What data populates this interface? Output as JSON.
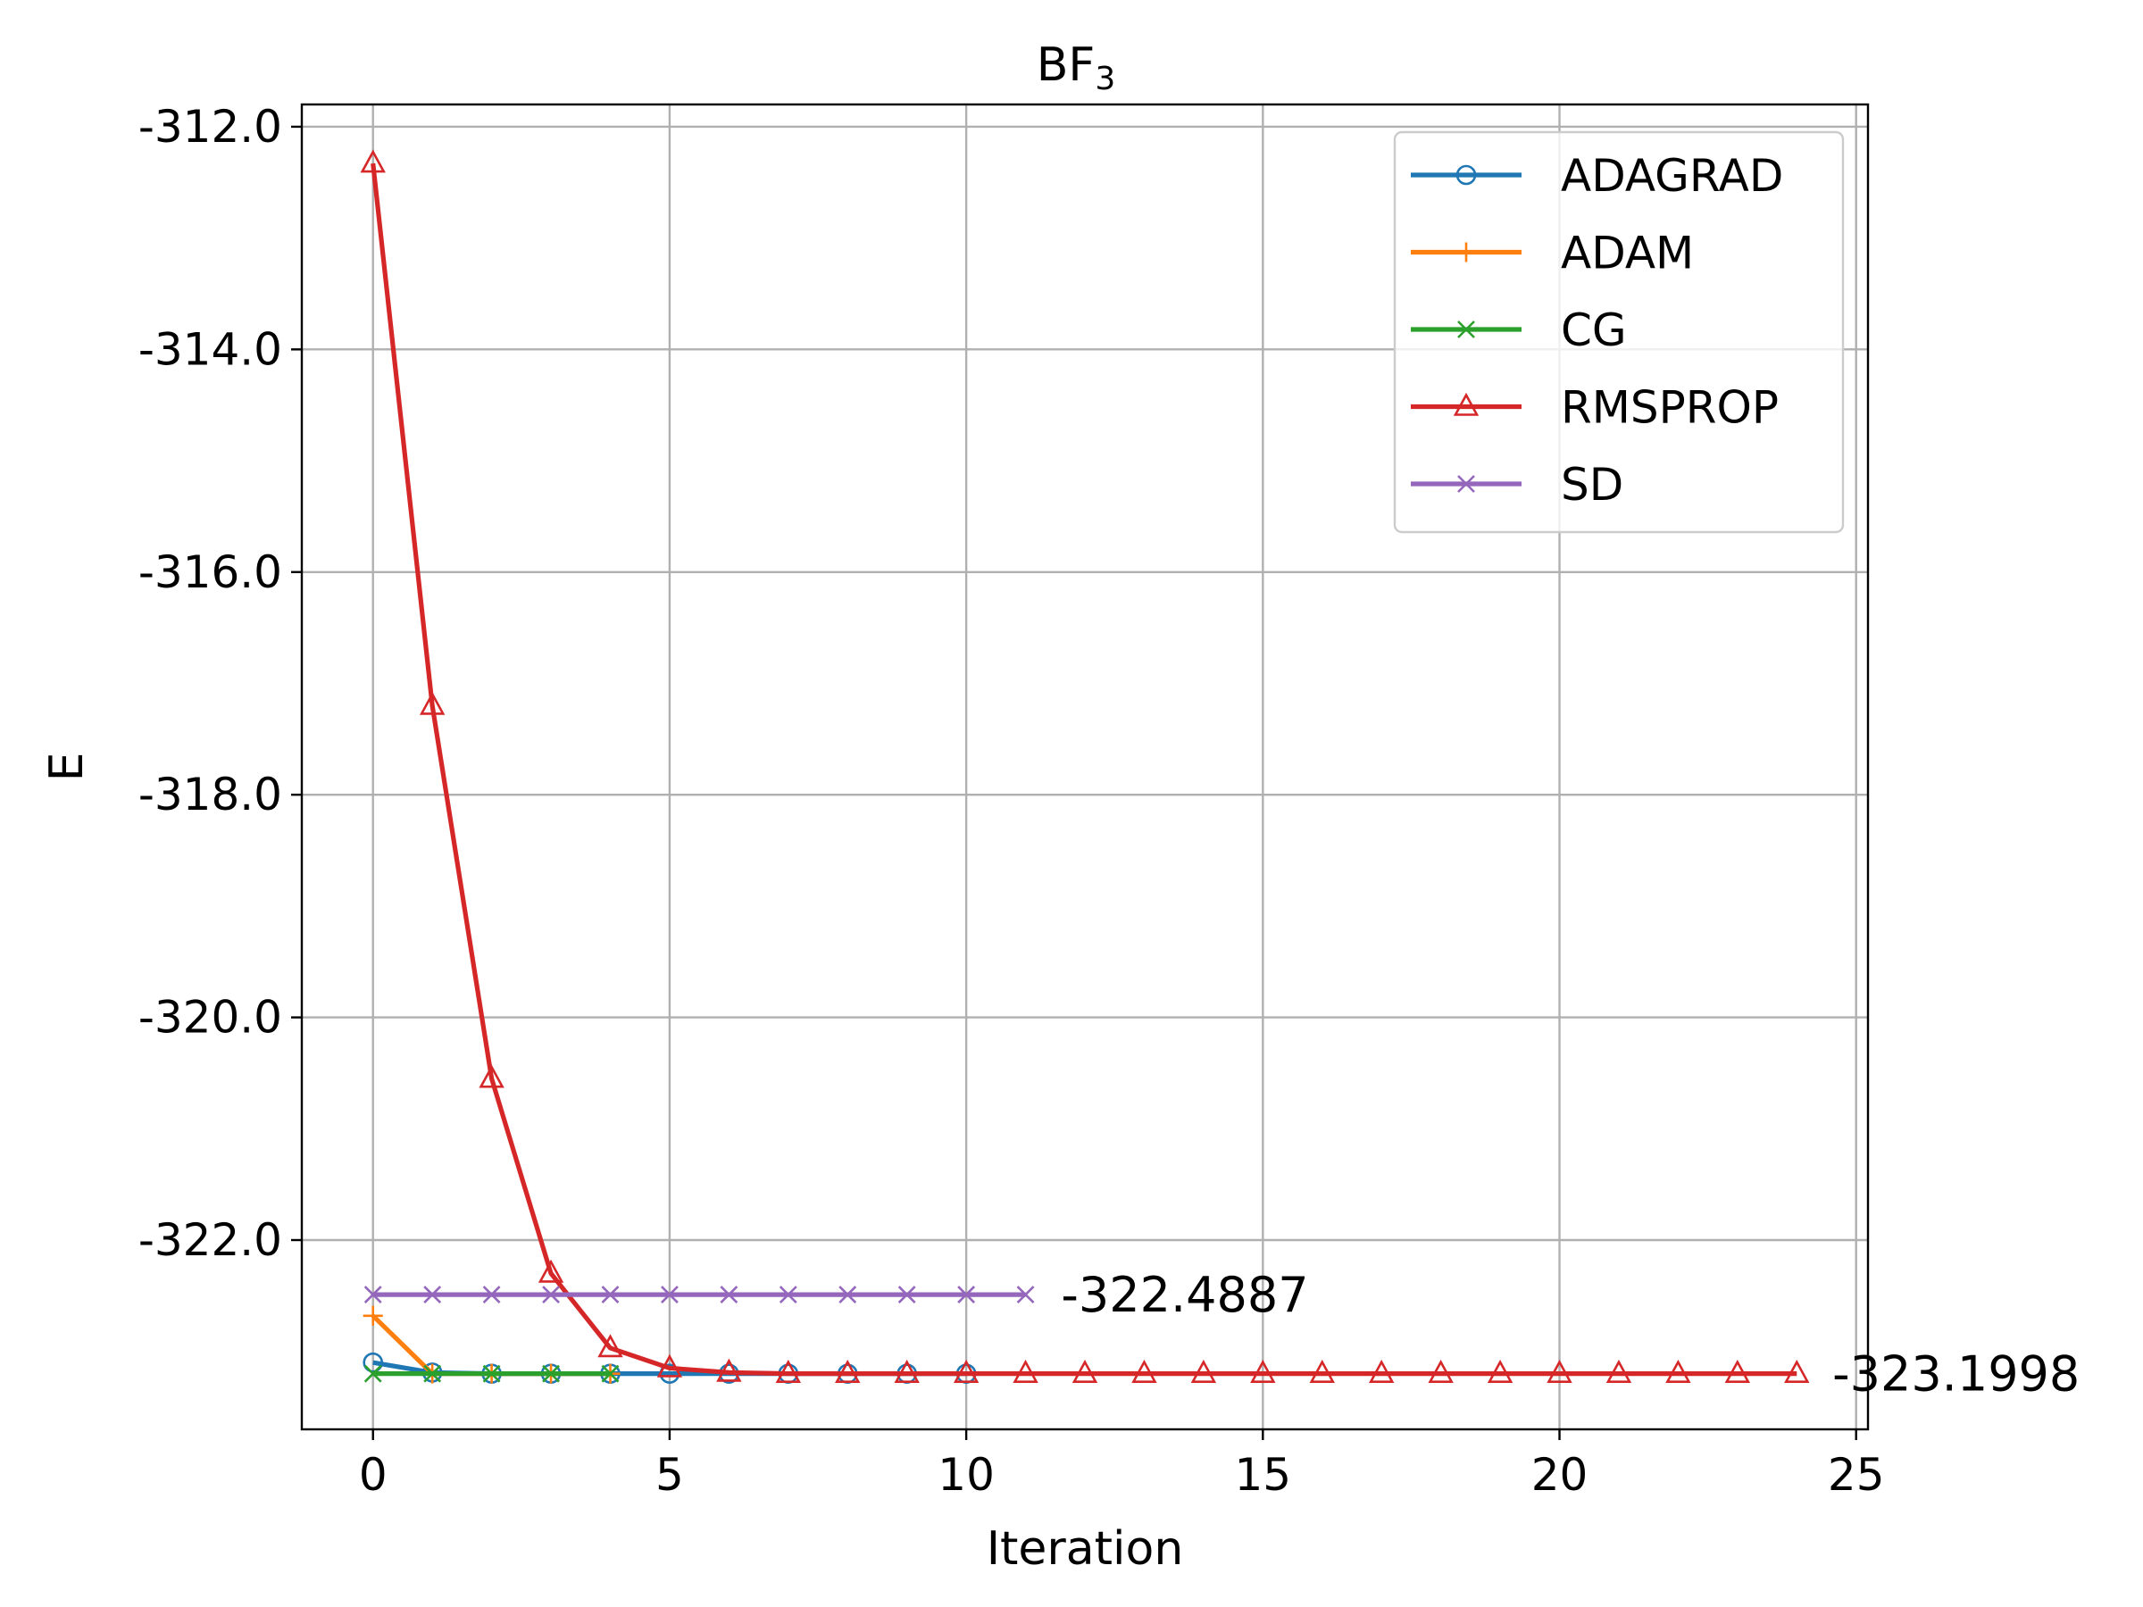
{
  "chart_data": {
    "type": "line",
    "title": "BF",
    "title_subscript": "3",
    "xlabel": "Iteration",
    "ylabel": "E",
    "xlim": [
      -1.2,
      25.2
    ],
    "ylim": [
      -323.7,
      -311.8
    ],
    "xticks": [
      0,
      5,
      10,
      15,
      20,
      25
    ],
    "yticks": [
      -312.0,
      -314.0,
      -316.0,
      -318.0,
      -320.0,
      -322.0
    ],
    "ytick_labels": [
      "-312.0",
      "-314.0",
      "-316.0",
      "-318.0",
      "-320.0",
      "-322.0"
    ],
    "grid": true,
    "legend_position": "upper right",
    "series": [
      {
        "name": "ADAGRAD",
        "color": "#1f77b4",
        "marker": "circle",
        "x": [
          0,
          1,
          2,
          3,
          4,
          5,
          6,
          7,
          8,
          9,
          10
        ],
        "y": [
          -323.1,
          -323.19,
          -323.2,
          -323.2,
          -323.2,
          -323.2,
          -323.2,
          -323.2,
          -323.2,
          -323.2,
          -323.2
        ]
      },
      {
        "name": "ADAM",
        "color": "#ff7f0e",
        "marker": "plus",
        "x": [
          0,
          1,
          2,
          3,
          4
        ],
        "y": [
          -322.68,
          -323.2,
          -323.2,
          -323.2,
          -323.2
        ]
      },
      {
        "name": "CG",
        "color": "#2ca02c",
        "marker": "x",
        "x": [
          0,
          1,
          2,
          3,
          4
        ],
        "y": [
          -323.2,
          -323.2,
          -323.2,
          -323.2,
          -323.2
        ]
      },
      {
        "name": "RMSPROP",
        "color": "#d62728",
        "marker": "triangle",
        "x": [
          0,
          1,
          2,
          3,
          4,
          5,
          6,
          7,
          8,
          9,
          10,
          11,
          12,
          13,
          14,
          15,
          16,
          17,
          18,
          19,
          20,
          21,
          22,
          23,
          24
        ],
        "y": [
          -312.33,
          -317.2,
          -320.55,
          -322.3,
          -322.97,
          -323.15,
          -323.19,
          -323.2,
          -323.2,
          -323.2,
          -323.2,
          -323.2,
          -323.2,
          -323.2,
          -323.2,
          -323.2,
          -323.2,
          -323.2,
          -323.2,
          -323.2,
          -323.2,
          -323.2,
          -323.2,
          -323.2,
          -323.2
        ]
      },
      {
        "name": "SD",
        "color": "#9467bd",
        "marker": "x",
        "x": [
          0,
          1,
          2,
          3,
          4,
          5,
          6,
          7,
          8,
          9,
          10,
          11
        ],
        "y": [
          -322.49,
          -322.49,
          -322.49,
          -322.49,
          -322.49,
          -322.49,
          -322.49,
          -322.49,
          -322.49,
          -322.49,
          -322.49,
          -322.49
        ]
      }
    ],
    "annotations": [
      {
        "text": "-322.4887",
        "x": 11.6,
        "y": -322.4887
      },
      {
        "text": "-323.1998",
        "x": 24.6,
        "y": -323.1998
      }
    ]
  }
}
